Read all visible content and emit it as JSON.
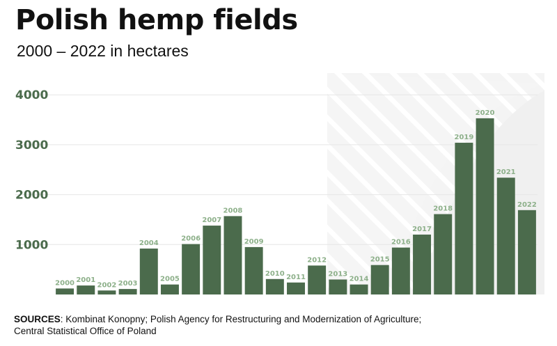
{
  "header": {
    "title": "Polish hemp fields",
    "subtitle": "2000 – 2022 in hectares"
  },
  "sources": {
    "label": "SOURCES",
    "text": ": Kombinat Konopny; Polish Agency for Restructuring and Modernization of Agriculture;",
    "text2": "Central Statistical Office of Poland"
  },
  "colors": {
    "bar": "#4b6b4c",
    "bar_label": "#8db08a",
    "axis_label": "#4b6b4c",
    "grid": "#e6e6e6",
    "background_panel": "#f4f4f4"
  },
  "chart_data": {
    "type": "bar",
    "categories": [
      "2000",
      "2001",
      "2002",
      "2003",
      "2004",
      "2005",
      "2006",
      "2007",
      "2008",
      "2009",
      "2010",
      "2011",
      "2012",
      "2013",
      "2014",
      "2015",
      "2016",
      "2017",
      "2018",
      "2019",
      "2020",
      "2021",
      "2022"
    ],
    "values": [
      120,
      180,
      80,
      110,
      920,
      200,
      1010,
      1380,
      1570,
      950,
      310,
      240,
      580,
      300,
      200,
      590,
      940,
      1200,
      1610,
      3040,
      3530,
      2340,
      1690
    ],
    "title": "Polish hemp fields",
    "xlabel": "",
    "ylabel": "",
    "ylim": [
      0,
      4000
    ],
    "yticks": [
      1000,
      2000,
      3000,
      4000
    ],
    "grid": true,
    "legend": "none",
    "data_labels": [
      "2000",
      "2001",
      "2002",
      "2003",
      "2004",
      "2005",
      "2006",
      "2007",
      "2008",
      "2009",
      "2010",
      "2011",
      "2012",
      "2013",
      "2014",
      "2015",
      "2016",
      "2017",
      "2018",
      "2019",
      "2020",
      "2021",
      "2022"
    ]
  }
}
